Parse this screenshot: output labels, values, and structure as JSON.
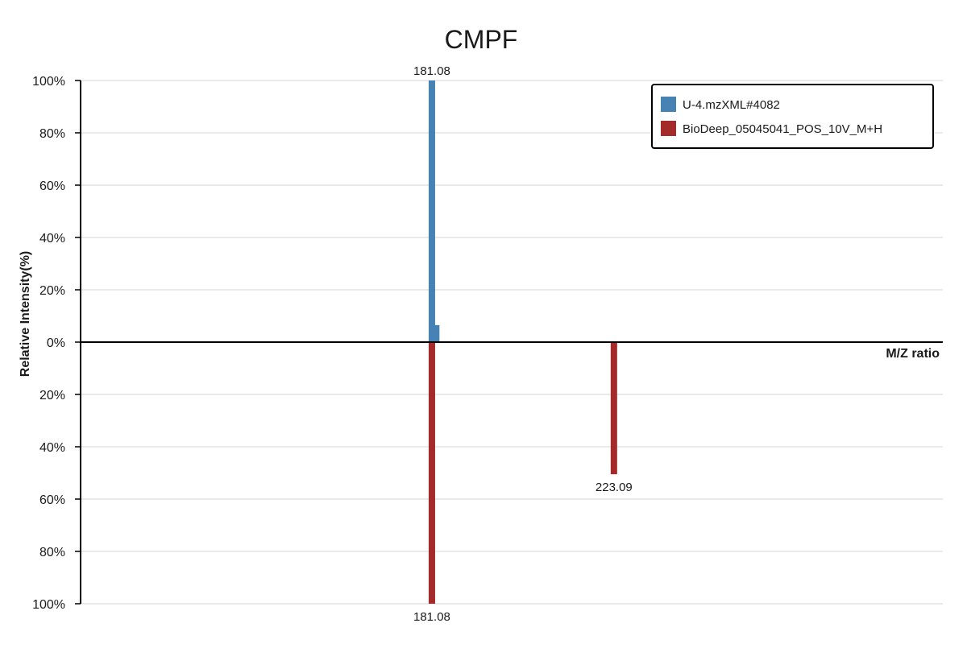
{
  "chart_data": {
    "type": "bar",
    "title": "CMPF",
    "xlabel": "M/Z ratio",
    "ylabel": "Relative Intensity(%)",
    "ylim": [
      -100,
      100
    ],
    "y_ticks": [
      {
        "value": 100,
        "label": "100%"
      },
      {
        "value": 80,
        "label": "80%"
      },
      {
        "value": 60,
        "label": "60%"
      },
      {
        "value": 40,
        "label": "40%"
      },
      {
        "value": 20,
        "label": "20%"
      },
      {
        "value": 0,
        "label": "0%"
      },
      {
        "value": -20,
        "label": "20%"
      },
      {
        "value": -40,
        "label": "40%"
      },
      {
        "value": -60,
        "label": "60%"
      },
      {
        "value": -80,
        "label": "80%"
      },
      {
        "value": -100,
        "label": "100%"
      }
    ],
    "grid": true,
    "legend_position": "top-right",
    "series": [
      {
        "name": "U-4.mzXML#4082",
        "color": "#4682b4",
        "direction": "up",
        "peaks": [
          {
            "mz": 181.08,
            "intensity": 100,
            "label": "181.08"
          },
          {
            "mz": 182.08,
            "intensity": 6.5,
            "label": ""
          }
        ]
      },
      {
        "name": "BioDeep_05045041_POS_10V_M+H",
        "color": "#a52a2a",
        "direction": "down",
        "peaks": [
          {
            "mz": 181.08,
            "intensity": 100,
            "label": "181.08"
          },
          {
            "mz": 223.09,
            "intensity": 50.5,
            "label": "223.09"
          }
        ]
      }
    ]
  }
}
